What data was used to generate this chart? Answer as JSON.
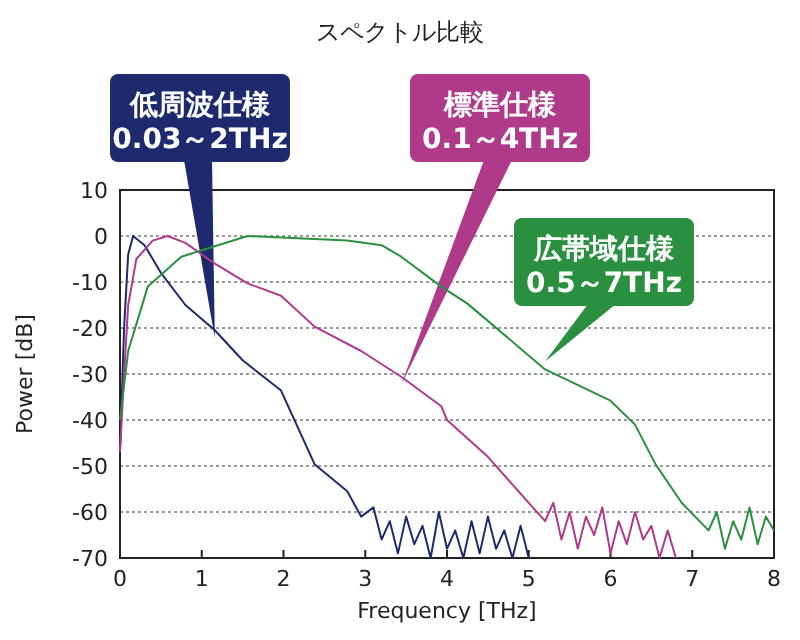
{
  "chart_data": {
    "type": "line",
    "title": "スペクトル比較",
    "xlabel": "Frequency [THz]",
    "ylabel": "Power [dB]",
    "xlim": [
      0,
      8
    ],
    "ylim": [
      -70,
      10
    ],
    "xticks": [
      0,
      1,
      2,
      3,
      4,
      5,
      6,
      7,
      8
    ],
    "yticks": [
      10,
      0,
      -10,
      -20,
      -30,
      -40,
      -50,
      -60,
      -70
    ],
    "grid": "y",
    "marker": "none",
    "line_style": "solid",
    "series": [
      {
        "name": "低周波仕様 0.03～2THz",
        "color": "#1f2a6e",
        "x": [
          0,
          0.05,
          0.1,
          0.16,
          0.3,
          0.5,
          0.8,
          1.16,
          1.5,
          1.97,
          2.38,
          2.78,
          2.95,
          3.1,
          3.2,
          3.3,
          3.4,
          3.5,
          3.6,
          3.7,
          3.8,
          3.9,
          4.0,
          4.1,
          4.2,
          4.3,
          4.4,
          4.5,
          4.6,
          4.7,
          4.8,
          4.9,
          5.0
        ],
        "values": [
          -47,
          -20,
          -4,
          0,
          -2,
          -8,
          -15,
          -20.5,
          -27,
          -33.6,
          -49.6,
          -55.5,
          -61,
          -59,
          -66,
          -62,
          -69,
          -61,
          -67,
          -63,
          -70,
          -60,
          -68,
          -64,
          -70,
          -62,
          -69,
          -61,
          -68,
          -64,
          -70,
          -63,
          -70
        ]
      },
      {
        "name": "標準仕様 0.1～4THz",
        "color": "#b03a8a",
        "x": [
          0,
          0.05,
          0.1,
          0.2,
          0.4,
          0.58,
          0.8,
          1.16,
          1.56,
          1.97,
          2.38,
          2.95,
          3.44,
          3.93,
          4.0,
          4.5,
          5.0,
          5.2,
          5.3,
          5.4,
          5.5,
          5.6,
          5.7,
          5.8,
          5.9,
          6.0,
          6.1,
          6.2,
          6.3,
          6.4,
          6.5,
          6.6,
          6.7,
          6.8
        ],
        "values": [
          -47,
          -30,
          -15,
          -5,
          -1,
          0,
          -1.5,
          -6,
          -10.3,
          -13,
          -19.7,
          -25,
          -30.6,
          -37,
          -40,
          -48,
          -58,
          -62,
          -58,
          -66,
          -60,
          -68,
          -61,
          -65,
          -59,
          -69,
          -62,
          -67,
          -60,
          -66,
          -63,
          -70,
          -64,
          -70
        ]
      },
      {
        "name": "広帯域仕様 0.5～7THz",
        "color": "#2a9040",
        "x": [
          0,
          0.1,
          0.34,
          0.75,
          1.56,
          2.78,
          3.2,
          3.44,
          3.93,
          4.25,
          5.2,
          6.0,
          6.3,
          6.55,
          6.87,
          7.2,
          7.3,
          7.4,
          7.5,
          7.6,
          7.7,
          7.8,
          7.9,
          8.0
        ],
        "values": [
          -40,
          -25,
          -11,
          -4.5,
          0,
          -1,
          -2,
          -4.5,
          -11,
          -14.7,
          -29,
          -35.8,
          -41,
          -49.6,
          -58,
          -64,
          -60,
          -68,
          -62,
          -66,
          -59,
          -67,
          -61,
          -64
        ]
      }
    ]
  }
}
